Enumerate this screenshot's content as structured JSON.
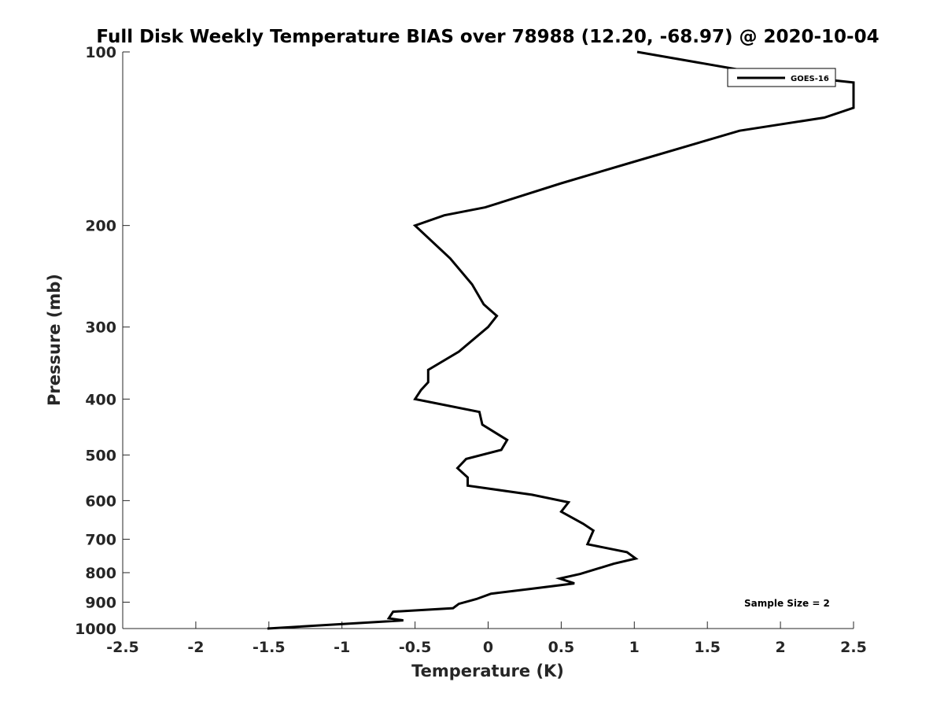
{
  "chart_data": {
    "type": "line",
    "title": "Full Disk Weekly Temperature BIAS over 78988 (12.20, -68.97) @ 2020-10-04",
    "xlabel": "Temperature (K)",
    "ylabel": "Pressure (mb)",
    "xlim": [
      -2.5,
      2.5
    ],
    "ylim": [
      100,
      1000
    ],
    "y_scale": "log",
    "y_direction": "reversed",
    "x_ticks": [
      "-2.5",
      "-2",
      "-1.5",
      "-1",
      "-0.5",
      "0",
      "0.5",
      "1",
      "1.5",
      "2",
      "2.5"
    ],
    "x_tick_values": [
      -2.5,
      -2,
      -1.5,
      -1,
      -0.5,
      0,
      0.5,
      1,
      1.5,
      2,
      2.5
    ],
    "y_ticks": [
      "100",
      "200",
      "300",
      "400",
      "500",
      "600",
      "700",
      "800",
      "900",
      "1000"
    ],
    "y_tick_values": [
      100,
      200,
      300,
      400,
      500,
      600,
      700,
      800,
      900,
      1000
    ],
    "legend_position": "top-right",
    "grid": false,
    "annotation": "Sample Size = 2",
    "series": [
      {
        "name": "GOES-16",
        "color": "#000000",
        "points": [
          [
            1.02,
            100
          ],
          [
            1.75,
            107.7
          ],
          [
            2.5,
            113
          ],
          [
            2.5,
            125
          ],
          [
            2.3,
            130
          ],
          [
            1.72,
            137
          ],
          [
            1.0,
            155
          ],
          [
            0.5,
            169
          ],
          [
            -0.02,
            186
          ],
          [
            -0.3,
            192
          ],
          [
            -0.5,
            200
          ],
          [
            -0.26,
            228
          ],
          [
            -0.11,
            253
          ],
          [
            -0.03,
            274
          ],
          [
            0.06,
            287
          ],
          [
            0.0,
            300
          ],
          [
            -0.2,
            331
          ],
          [
            -0.41,
            356
          ],
          [
            -0.41,
            374
          ],
          [
            -0.46,
            386
          ],
          [
            -0.5,
            400
          ],
          [
            -0.06,
            421
          ],
          [
            -0.04,
            443
          ],
          [
            0.13,
            471
          ],
          [
            0.09,
            490
          ],
          [
            -0.15,
            508
          ],
          [
            -0.21,
            527
          ],
          [
            -0.14,
            547
          ],
          [
            -0.14,
            565
          ],
          [
            0.3,
            586
          ],
          [
            0.55,
            604
          ],
          [
            0.5,
            627
          ],
          [
            0.65,
            658
          ],
          [
            0.72,
            676
          ],
          [
            0.68,
            714
          ],
          [
            0.95,
            737
          ],
          [
            1.01,
            756
          ],
          [
            0.86,
            772
          ],
          [
            0.63,
            804
          ],
          [
            0.49,
            819
          ],
          [
            0.59,
            835
          ],
          [
            0.3,
            853
          ],
          [
            0.02,
            870
          ],
          [
            -0.08,
            889
          ],
          [
            -0.2,
            906
          ],
          [
            -0.24,
            922
          ],
          [
            -0.65,
            935
          ],
          [
            -0.68,
            960
          ],
          [
            -0.58,
            968
          ],
          [
            -1.51,
            1000
          ]
        ]
      }
    ]
  }
}
